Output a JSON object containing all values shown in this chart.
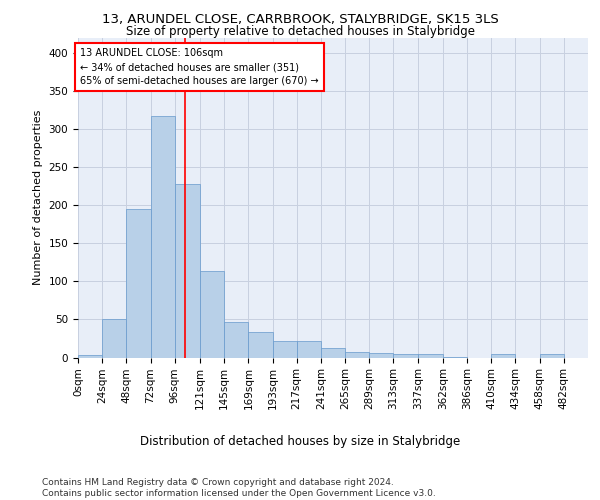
{
  "title": "13, ARUNDEL CLOSE, CARRBROOK, STALYBRIDGE, SK15 3LS",
  "subtitle": "Size of property relative to detached houses in Stalybridge",
  "xlabel": "Distribution of detached houses by size in Stalybridge",
  "ylabel": "Number of detached properties",
  "bar_edges": [
    0,
    24,
    48,
    72,
    96,
    121,
    145,
    169,
    193,
    217,
    241,
    265,
    289,
    313,
    337,
    362,
    386,
    410,
    434,
    458,
    482,
    506
  ],
  "bar_heights": [
    3,
    51,
    195,
    317,
    228,
    114,
    46,
    34,
    22,
    22,
    13,
    7,
    6,
    5,
    5,
    1,
    0,
    5,
    0,
    5,
    0
  ],
  "bar_color": "#b8d0e8",
  "bar_edgecolor": "#6699cc",
  "grid_color": "#c8d0e0",
  "background_color": "#e8eef8",
  "red_line_x": 106,
  "annotation_line1": "13 ARUNDEL CLOSE: 106sqm",
  "annotation_line2": "← 34% of detached houses are smaller (351)",
  "annotation_line3": "65% of semi-detached houses are larger (670) →",
  "annotation_box_color": "white",
  "annotation_box_edgecolor": "red",
  "ylim": [
    0,
    420
  ],
  "yticks": [
    0,
    50,
    100,
    150,
    200,
    250,
    300,
    350,
    400
  ],
  "footer_text": "Contains HM Land Registry data © Crown copyright and database right 2024.\nContains public sector information licensed under the Open Government Licence v3.0.",
  "title_fontsize": 9.5,
  "subtitle_fontsize": 8.5,
  "xlabel_fontsize": 8.5,
  "ylabel_fontsize": 8,
  "tick_fontsize": 7.5,
  "annotation_fontsize": 7,
  "footer_fontsize": 6.5
}
